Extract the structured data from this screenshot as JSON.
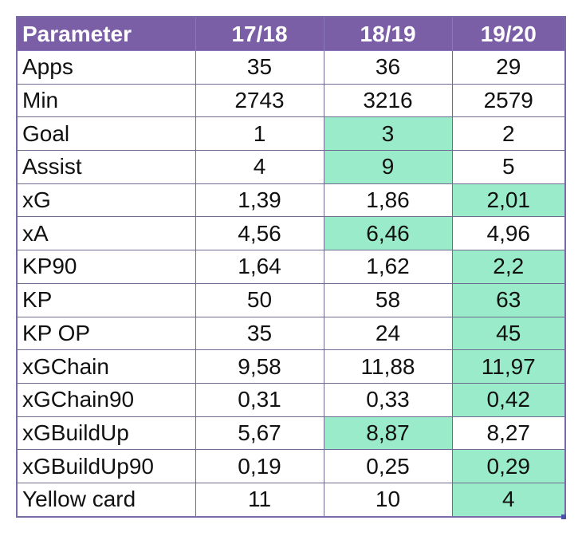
{
  "table": {
    "header": {
      "parameter": "Parameter",
      "seasons": [
        "17/18",
        "18/19",
        "19/20"
      ]
    },
    "rows": [
      {
        "label": "Apps",
        "values": [
          "35",
          "36",
          "29"
        ],
        "highlight": [
          false,
          false,
          false
        ]
      },
      {
        "label": "Min",
        "values": [
          "2743",
          "3216",
          "2579"
        ],
        "highlight": [
          false,
          false,
          false
        ]
      },
      {
        "label": "Goal",
        "values": [
          "1",
          "3",
          "2"
        ],
        "highlight": [
          false,
          true,
          false
        ]
      },
      {
        "label": "Assist",
        "values": [
          "4",
          "9",
          "5"
        ],
        "highlight": [
          false,
          true,
          false
        ]
      },
      {
        "label": "xG",
        "values": [
          "1,39",
          "1,86",
          "2,01"
        ],
        "highlight": [
          false,
          false,
          true
        ]
      },
      {
        "label": "xA",
        "values": [
          "4,56",
          "6,46",
          "4,96"
        ],
        "highlight": [
          false,
          true,
          false
        ]
      },
      {
        "label": "KP90",
        "values": [
          "1,64",
          "1,62",
          "2,2"
        ],
        "highlight": [
          false,
          false,
          true
        ]
      },
      {
        "label": "KP",
        "values": [
          "50",
          "58",
          "63"
        ],
        "highlight": [
          false,
          false,
          true
        ]
      },
      {
        "label": "KP OP",
        "values": [
          "35",
          "24",
          "45"
        ],
        "highlight": [
          false,
          false,
          true
        ]
      },
      {
        "label": "xGChain",
        "values": [
          "9,58",
          "11,88",
          "11,97"
        ],
        "highlight": [
          false,
          false,
          true
        ]
      },
      {
        "label": "xGChain90",
        "values": [
          "0,31",
          "0,33",
          "0,42"
        ],
        "highlight": [
          false,
          false,
          true
        ]
      },
      {
        "label": "xGBuildUp",
        "values": [
          "5,67",
          "8,87",
          "8,27"
        ],
        "highlight": [
          false,
          true,
          false
        ]
      },
      {
        "label": "xGBuildUp90",
        "values": [
          "0,19",
          "0,25",
          "0,29"
        ],
        "highlight": [
          false,
          false,
          true
        ]
      },
      {
        "label": "Yellow card",
        "values": [
          "11",
          "10",
          "4"
        ],
        "highlight": [
          false,
          false,
          true
        ]
      }
    ]
  },
  "colors": {
    "header_bg": "#7b5fa6",
    "header_text": "#ffffff",
    "highlight": "#9aebc9",
    "grid": "#6f6a8f"
  }
}
